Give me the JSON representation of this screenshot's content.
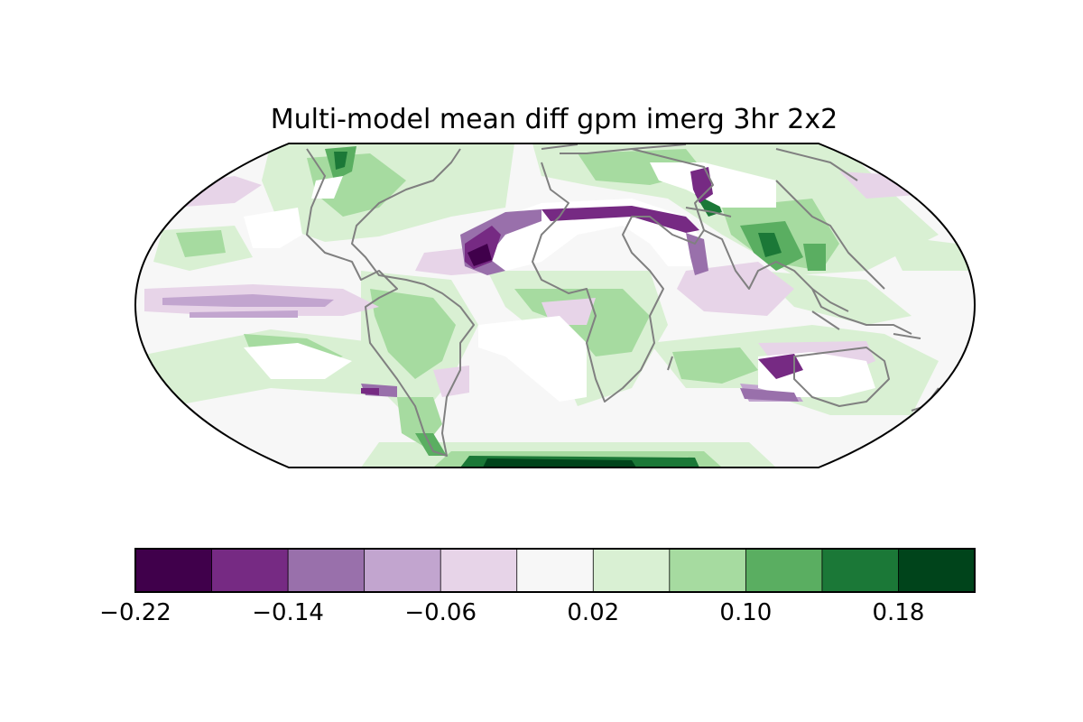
{
  "figure": {
    "title": "Multi-model mean diff gpm imerg 3hr 2x2",
    "projection": "Robinson",
    "coastline_color": "#808080"
  },
  "colorbar": {
    "colormap": "PRGn",
    "bin_colors": [
      "#40004b",
      "#762a83",
      "#9970ab",
      "#c2a5cf",
      "#e7d4e8",
      "#f7f7f7",
      "#d9f0d3",
      "#a6dba0",
      "#5aae61",
      "#1b7837",
      "#00441b"
    ],
    "ticks": [
      "−0.22",
      "−0.14",
      "−0.06",
      "0.02",
      "0.10",
      "0.18"
    ]
  },
  "map_regions": [
    {
      "name": "sahara-saudi-dry-region",
      "color": "#ffffff"
    },
    {
      "name": "west-africa-negative-anomaly",
      "color": "#40004b"
    },
    {
      "name": "north-sahara-negative-band",
      "color": "#762a83"
    },
    {
      "name": "central-asia-dry-region",
      "color": "#ffffff"
    },
    {
      "name": "tibet-positive-anomaly",
      "color": "#1b7837"
    },
    {
      "name": "southeast-asia-positive-region",
      "color": "#5aae61"
    },
    {
      "name": "amazon-positive-region",
      "color": "#a6dba0"
    },
    {
      "name": "central-africa-positive-region",
      "color": "#a6dba0"
    },
    {
      "name": "southern-ocean-positive-band",
      "color": "#00441b"
    },
    {
      "name": "pacific-negative-band",
      "color": "#c2a5cf"
    },
    {
      "name": "australia-dry-region",
      "color": "#ffffff"
    },
    {
      "name": "australia-negative-edge",
      "color": "#762a83"
    },
    {
      "name": "south-atlantic-dry-region",
      "color": "#ffffff"
    },
    {
      "name": "north-pacific-dry-region",
      "color": "#ffffff"
    },
    {
      "name": "south-pacific-positive-band",
      "color": "#a6dba0"
    },
    {
      "name": "north-america-positive-region",
      "color": "#a6dba0"
    }
  ]
}
